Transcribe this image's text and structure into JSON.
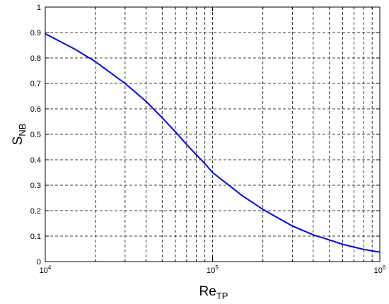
{
  "chart_data": {
    "type": "line",
    "title": "",
    "xlabel": {
      "main": "Re",
      "sub": "TP"
    },
    "ylabel": {
      "main": "S",
      "sub": "NB"
    },
    "xscale": "log",
    "xlim": [
      10000,
      1000000
    ],
    "ylim": [
      0,
      1
    ],
    "grid": true,
    "grid_style": "dashed",
    "line_color": "#0000ff",
    "x_ticks": [
      {
        "value": 10000,
        "base": "10",
        "exp": "4"
      },
      {
        "value": 100000,
        "base": "10",
        "exp": "5"
      },
      {
        "value": 1000000,
        "base": "10",
        "exp": "6"
      }
    ],
    "y_ticks": [
      "0",
      "0.1",
      "0.2",
      "0.3",
      "0.4",
      "0.5",
      "0.6",
      "0.7",
      "0.8",
      "0.9",
      "1"
    ],
    "series": [
      {
        "x": [
          10000,
          15000,
          20000,
          30000,
          40000,
          50000,
          60000,
          70000,
          80000,
          90000,
          100000,
          150000,
          200000,
          300000,
          400000,
          500000,
          600000,
          700000,
          800000,
          900000,
          1000000
        ],
        "y": [
          0.895,
          0.835,
          0.785,
          0.7,
          0.63,
          0.565,
          0.51,
          0.46,
          0.42,
          0.385,
          0.35,
          0.26,
          0.205,
          0.14,
          0.105,
          0.085,
          0.068,
          0.057,
          0.048,
          0.042,
          0.037
        ]
      }
    ]
  }
}
